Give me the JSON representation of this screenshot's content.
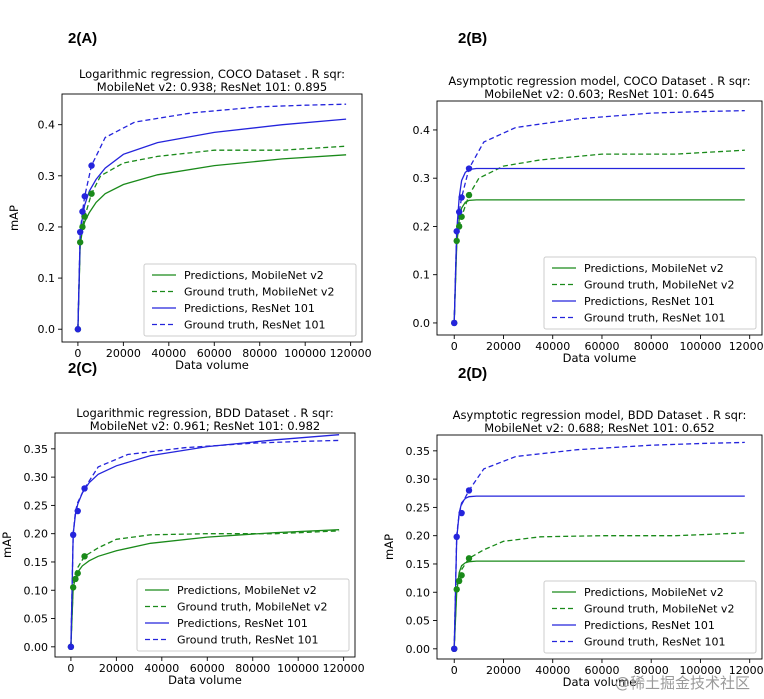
{
  "panel_labels": [
    "2(A)",
    "2(B)",
    "2(C)",
    "2(D)"
  ],
  "watermark": "@稀土掘金技术社区",
  "colors": {
    "green": "#1a8a1a",
    "blue": "#2424dc"
  },
  "chart_data": [
    {
      "type": "line",
      "title": [
        "Logarithmic regression, COCO Dataset . R sqr:",
        "MobileNet v2: 0.938; ResNet 101: 0.895"
      ],
      "xlabel": "Data volume",
      "ylabel": "mAP",
      "xlim": [
        -7000,
        125000
      ],
      "ylim": [
        -0.025,
        0.46
      ],
      "xticks": [
        0,
        20000,
        40000,
        60000,
        80000,
        100000,
        120000
      ],
      "yticks": [
        0.0,
        0.1,
        0.2,
        0.3,
        0.4
      ],
      "legend": "lower-right",
      "series": [
        {
          "name": "Predictions, MobileNet v2",
          "color": "green",
          "dash": false,
          "x": [
            0,
            1000,
            2000,
            3000,
            5000,
            8000,
            12000,
            20000,
            35000,
            60000,
            90000,
            118000
          ],
          "y": [
            0.0,
            0.165,
            0.195,
            0.21,
            0.228,
            0.248,
            0.265,
            0.283,
            0.302,
            0.32,
            0.333,
            0.341
          ]
        },
        {
          "name": "Ground truth, MobileNet v2",
          "color": "green",
          "dash": true,
          "x": [
            0,
            1000,
            2000,
            3000,
            6000,
            10000,
            20000,
            35000,
            60000,
            90000,
            118000
          ],
          "y": [
            0.0,
            0.17,
            0.2,
            0.22,
            0.265,
            0.3,
            0.325,
            0.338,
            0.35,
            0.35,
            0.358
          ]
        },
        {
          "name": "Predictions, ResNet 101",
          "color": "blue",
          "dash": false,
          "x": [
            0,
            1000,
            2000,
            3000,
            5000,
            8000,
            12000,
            20000,
            35000,
            60000,
            90000,
            118000
          ],
          "y": [
            0.0,
            0.185,
            0.22,
            0.243,
            0.27,
            0.293,
            0.315,
            0.342,
            0.365,
            0.385,
            0.4,
            0.411
          ]
        },
        {
          "name": "Ground truth, ResNet 101",
          "color": "blue",
          "dash": true,
          "x": [
            0,
            1000,
            2000,
            3000,
            6000,
            12000,
            25000,
            50000,
            80000,
            100000,
            118000
          ],
          "y": [
            0.0,
            0.19,
            0.23,
            0.26,
            0.32,
            0.375,
            0.405,
            0.423,
            0.435,
            0.438,
            0.44
          ]
        }
      ],
      "markers": [
        {
          "color": "green",
          "x": [
            0,
            1000,
            2000,
            3000,
            6000
          ],
          "y": [
            0.0,
            0.17,
            0.2,
            0.22,
            0.265
          ]
        },
        {
          "color": "blue",
          "x": [
            0,
            1000,
            2000,
            3000,
            6000
          ],
          "y": [
            0.0,
            0.19,
            0.23,
            0.26,
            0.32
          ]
        }
      ]
    },
    {
      "type": "line",
      "title": [
        "Asymptotic regression model, COCO Dataset . R sqr:",
        "MobileNet v2: 0.603; ResNet 101: 0.645"
      ],
      "xlabel": "Data volume",
      "ylabel": "",
      "xlim": [
        -7000,
        125000
      ],
      "ylim": [
        -0.025,
        0.46
      ],
      "xticks": [
        0,
        20000,
        40000,
        60000,
        80000,
        100000,
        120000
      ],
      "yticks": [
        0.0,
        0.1,
        0.2,
        0.3,
        0.4
      ],
      "legend": "lower-right",
      "series": [
        {
          "name": "Predictions, MobileNet v2",
          "color": "green",
          "dash": false,
          "x": [
            0,
            1000,
            2000,
            3000,
            4500,
            6000,
            9000,
            20000,
            118000
          ],
          "y": [
            0.0,
            0.16,
            0.215,
            0.238,
            0.25,
            0.254,
            0.255,
            0.255,
            0.255
          ]
        },
        {
          "name": "Ground truth, MobileNet v2",
          "color": "green",
          "dash": true,
          "x": [
            0,
            1000,
            2000,
            3000,
            6000,
            10000,
            20000,
            35000,
            60000,
            90000,
            118000
          ],
          "y": [
            0.0,
            0.17,
            0.2,
            0.22,
            0.265,
            0.3,
            0.325,
            0.338,
            0.35,
            0.35,
            0.358
          ]
        },
        {
          "name": "Predictions, ResNet 101",
          "color": "blue",
          "dash": false,
          "x": [
            0,
            1000,
            2000,
            3000,
            4500,
            6000,
            9000,
            20000,
            118000
          ],
          "y": [
            0.0,
            0.19,
            0.26,
            0.295,
            0.312,
            0.318,
            0.32,
            0.32,
            0.32
          ]
        },
        {
          "name": "Ground truth, ResNet 101",
          "color": "blue",
          "dash": true,
          "x": [
            0,
            1000,
            2000,
            3000,
            6000,
            12000,
            25000,
            50000,
            80000,
            100000,
            118000
          ],
          "y": [
            0.0,
            0.19,
            0.23,
            0.26,
            0.32,
            0.375,
            0.405,
            0.423,
            0.435,
            0.438,
            0.44
          ]
        }
      ],
      "markers": [
        {
          "color": "green",
          "x": [
            0,
            1000,
            2000,
            3000,
            6000
          ],
          "y": [
            0.0,
            0.17,
            0.2,
            0.22,
            0.265
          ]
        },
        {
          "color": "blue",
          "x": [
            0,
            1000,
            2000,
            3000,
            6000
          ],
          "y": [
            0.0,
            0.19,
            0.23,
            0.26,
            0.32
          ]
        }
      ]
    },
    {
      "type": "line",
      "title": [
        "Logarithmic regression, BDD Dataset . R sqr:",
        "MobileNet v2: 0.961; ResNet 101: 0.982"
      ],
      "xlabel": "Data volume",
      "ylabel": "mAP",
      "xlim": [
        -7000,
        125000
      ],
      "ylim": [
        -0.018,
        0.378
      ],
      "xticks": [
        0,
        20000,
        40000,
        60000,
        80000,
        100000,
        120000
      ],
      "yticks": [
        0.0,
        0.05,
        0.1,
        0.15,
        0.2,
        0.25,
        0.3,
        0.35
      ],
      "legend": "lower-right",
      "series": [
        {
          "name": "Predictions, MobileNet v2",
          "color": "green",
          "dash": false,
          "x": [
            0,
            1000,
            2000,
            3000,
            5000,
            8000,
            12000,
            20000,
            35000,
            60000,
            90000,
            118000
          ],
          "y": [
            0.0,
            0.105,
            0.122,
            0.132,
            0.143,
            0.152,
            0.16,
            0.17,
            0.183,
            0.194,
            0.202,
            0.207
          ]
        },
        {
          "name": "Ground truth, MobileNet v2",
          "color": "green",
          "dash": true,
          "x": [
            0,
            1000,
            2000,
            3000,
            6000,
            12000,
            20000,
            35000,
            60000,
            90000,
            118000
          ],
          "y": [
            0.0,
            0.11,
            0.13,
            0.14,
            0.16,
            0.175,
            0.19,
            0.198,
            0.2,
            0.2,
            0.205
          ]
        },
        {
          "name": "Predictions, ResNet 101",
          "color": "blue",
          "dash": false,
          "x": [
            0,
            1000,
            2000,
            3000,
            5000,
            8000,
            12000,
            20000,
            35000,
            60000,
            90000,
            118000
          ],
          "y": [
            0.0,
            0.2,
            0.235,
            0.252,
            0.272,
            0.29,
            0.305,
            0.32,
            0.338,
            0.354,
            0.366,
            0.375
          ]
        },
        {
          "name": "Ground truth, ResNet 101",
          "color": "blue",
          "dash": true,
          "x": [
            0,
            1000,
            2000,
            3000,
            6000,
            12000,
            25000,
            50000,
            80000,
            100000,
            118000
          ],
          "y": [
            0.0,
            0.2,
            0.24,
            0.255,
            0.28,
            0.318,
            0.34,
            0.352,
            0.36,
            0.363,
            0.365
          ]
        }
      ],
      "markers": [
        {
          "color": "green",
          "x": [
            0,
            1000,
            2000,
            3000,
            6000
          ],
          "y": [
            0.0,
            0.105,
            0.12,
            0.13,
            0.16
          ]
        },
        {
          "color": "blue",
          "x": [
            0,
            1000,
            3000,
            6000
          ],
          "y": [
            0.0,
            0.198,
            0.24,
            0.28
          ]
        }
      ]
    },
    {
      "type": "line",
      "title": [
        "Asymptotic regression model, BDD Dataset . R sqr:",
        "MobileNet v2: 0.688; ResNet 101: 0.652"
      ],
      "xlabel": "Data volume",
      "ylabel": "mAP",
      "xlim": [
        -7000,
        125000
      ],
      "ylim": [
        -0.018,
        0.378
      ],
      "xticks": [
        0,
        20000,
        40000,
        60000,
        80000,
        100000,
        120000
      ],
      "yticks": [
        0.0,
        0.05,
        0.1,
        0.15,
        0.2,
        0.25,
        0.3,
        0.35
      ],
      "legend": "lower-right",
      "series": [
        {
          "name": "Predictions, MobileNet v2",
          "color": "green",
          "dash": false,
          "x": [
            0,
            1000,
            2000,
            3000,
            4500,
            6000,
            9000,
            20000,
            118000
          ],
          "y": [
            0.0,
            0.1,
            0.135,
            0.147,
            0.152,
            0.154,
            0.155,
            0.155,
            0.155
          ]
        },
        {
          "name": "Ground truth, MobileNet v2",
          "color": "green",
          "dash": true,
          "x": [
            0,
            1000,
            2000,
            3000,
            6000,
            12000,
            20000,
            35000,
            60000,
            90000,
            118000
          ],
          "y": [
            0.0,
            0.11,
            0.13,
            0.14,
            0.16,
            0.175,
            0.19,
            0.198,
            0.2,
            0.2,
            0.205
          ]
        },
        {
          "name": "Predictions, ResNet 101",
          "color": "blue",
          "dash": false,
          "x": [
            0,
            1000,
            2000,
            3000,
            4500,
            6000,
            9000,
            20000,
            118000
          ],
          "y": [
            0.0,
            0.195,
            0.24,
            0.258,
            0.266,
            0.269,
            0.27,
            0.27,
            0.27
          ]
        },
        {
          "name": "Ground truth, ResNet 101",
          "color": "blue",
          "dash": true,
          "x": [
            0,
            1000,
            2000,
            3000,
            6000,
            12000,
            25000,
            50000,
            80000,
            100000,
            118000
          ],
          "y": [
            0.0,
            0.2,
            0.24,
            0.255,
            0.28,
            0.318,
            0.34,
            0.352,
            0.36,
            0.363,
            0.365
          ]
        }
      ],
      "markers": [
        {
          "color": "green",
          "x": [
            0,
            1000,
            2000,
            3000,
            6000
          ],
          "y": [
            0.0,
            0.105,
            0.12,
            0.13,
            0.16
          ]
        },
        {
          "color": "blue",
          "x": [
            0,
            1000,
            3000,
            6000
          ],
          "y": [
            0.0,
            0.198,
            0.24,
            0.28
          ]
        }
      ]
    }
  ]
}
